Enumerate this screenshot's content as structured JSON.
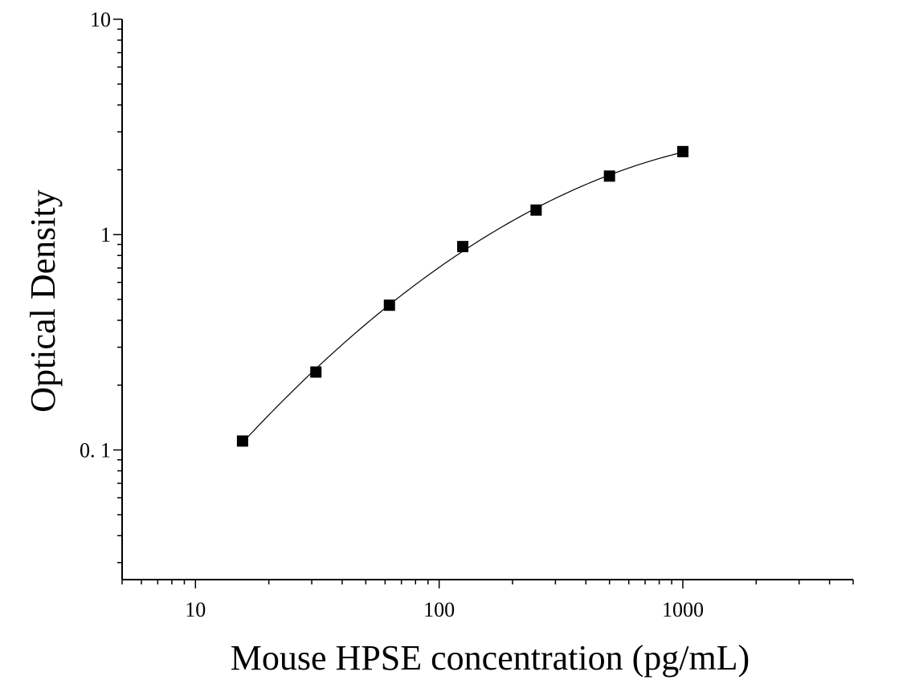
{
  "chart_data": {
    "type": "scatter",
    "title": "",
    "xlabel": "Mouse HPSE concentration (pg/mL)",
    "ylabel": "Optical Density",
    "x_scale": "log",
    "y_scale": "log",
    "xlim": [
      5,
      5000
    ],
    "ylim": [
      0.025,
      10
    ],
    "x_tick_values": [
      10,
      100,
      1000
    ],
    "x_tick_labels": [
      "10",
      "100",
      "1000"
    ],
    "y_tick_values": [
      0.1,
      1,
      10
    ],
    "y_tick_labels": [
      "0. 1",
      "1",
      "10"
    ],
    "grid": false,
    "legend": "none",
    "series": [
      {
        "x": [
          15.6,
          31.2,
          62.5,
          125,
          250,
          500,
          1000
        ],
        "y": [
          0.11,
          0.23,
          0.47,
          0.88,
          1.3,
          1.87,
          2.43
        ],
        "marker": "square",
        "color": "#000000"
      }
    ],
    "fit_curve": {
      "x_range": [
        15.6,
        1000
      ],
      "color": "#000000"
    }
  }
}
